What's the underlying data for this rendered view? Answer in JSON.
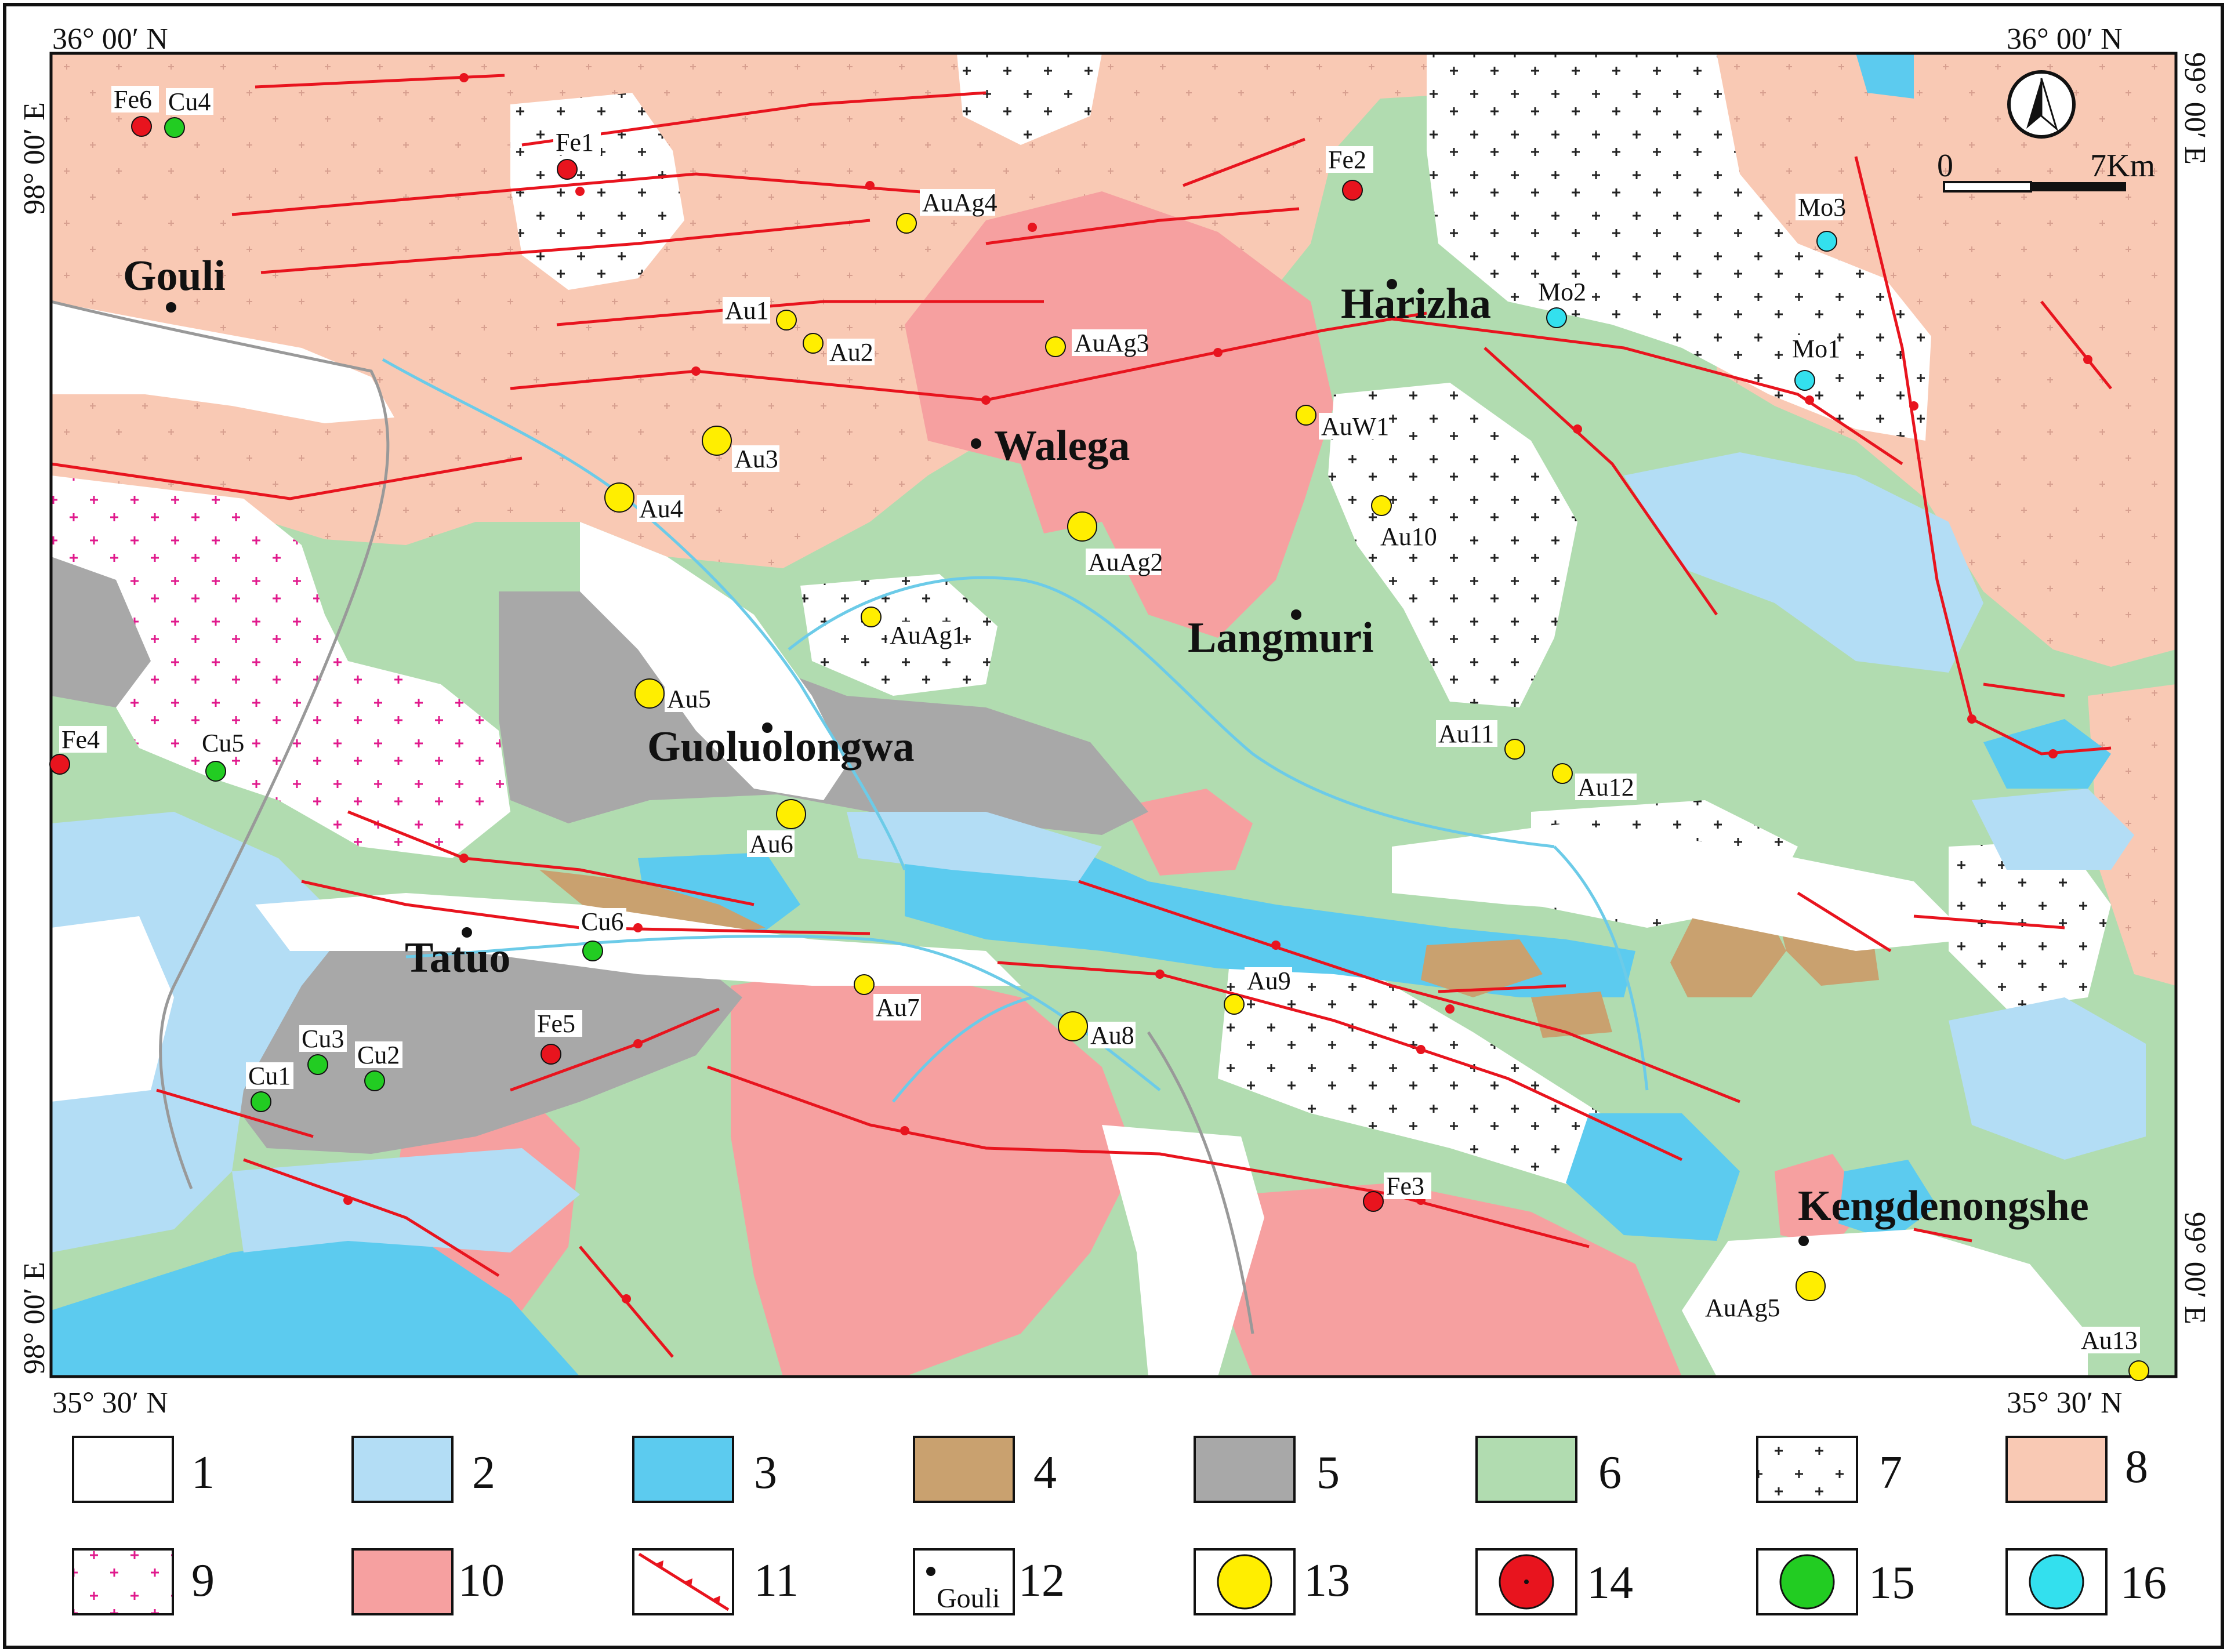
{
  "coords": {
    "top_left_lat": "36° 00′ N",
    "top_right_lat": "36° 00′ N",
    "bottom_left_lat": "35° 30′ N",
    "bottom_right_lat": "35° 30′ N",
    "top_left_lon": "98° 00′ E",
    "bottom_left_lon": "98° 00′ E",
    "top_right_lon": "99° 00′ E",
    "bottom_right_lon": "99° 00′ E"
  },
  "scale": {
    "zero": "0",
    "max": "7Km"
  },
  "places": [
    {
      "id": "gouli",
      "name": "Gouli"
    },
    {
      "id": "harizha",
      "name": "Harizha"
    },
    {
      "id": "walega",
      "name": "Walega"
    },
    {
      "id": "langmuri",
      "name": "Langmuri"
    },
    {
      "id": "guoluolongwa",
      "name": "Guoluolongwa"
    },
    {
      "id": "tatuo",
      "name": "Tatuo"
    },
    {
      "id": "kengdenongshe",
      "name": "Kengdenongshe"
    }
  ],
  "deposits": [
    {
      "name": "Fe6",
      "type": "Fe"
    },
    {
      "name": "Cu4",
      "type": "Cu"
    },
    {
      "name": "Fe1",
      "type": "Fe"
    },
    {
      "name": "Fe2",
      "type": "Fe"
    },
    {
      "name": "AuAg4",
      "type": "Au"
    },
    {
      "name": "Au1",
      "type": "Au"
    },
    {
      "name": "Au2",
      "type": "Au"
    },
    {
      "name": "AuAg3",
      "type": "Au"
    },
    {
      "name": "Mo2",
      "type": "Mo"
    },
    {
      "name": "Mo3",
      "type": "Mo"
    },
    {
      "name": "Mo1",
      "type": "Mo"
    },
    {
      "name": "AuW1",
      "type": "Au"
    },
    {
      "name": "Au3",
      "type": "Au"
    },
    {
      "name": "Au4",
      "type": "Au"
    },
    {
      "name": "AuAg2",
      "type": "Au"
    },
    {
      "name": "Au10",
      "type": "Au"
    },
    {
      "name": "AuAg1",
      "type": "Au"
    },
    {
      "name": "Au5",
      "type": "Au"
    },
    {
      "name": "Fe4",
      "type": "Fe"
    },
    {
      "name": "Cu5",
      "type": "Cu"
    },
    {
      "name": "Au11",
      "type": "Au"
    },
    {
      "name": "Au12",
      "type": "Au"
    },
    {
      "name": "Au6",
      "type": "Au"
    },
    {
      "name": "Cu6",
      "type": "Cu"
    },
    {
      "name": "Au9",
      "type": "Au"
    },
    {
      "name": "Au7",
      "type": "Au"
    },
    {
      "name": "Au8",
      "type": "Au"
    },
    {
      "name": "Fe5",
      "type": "Fe"
    },
    {
      "name": "Cu3",
      "type": "Cu"
    },
    {
      "name": "Cu2",
      "type": "Cu"
    },
    {
      "name": "Cu1",
      "type": "Cu"
    },
    {
      "name": "Fe3",
      "type": "Fe"
    },
    {
      "name": "AuAg5",
      "type": "Au"
    },
    {
      "name": "Au13",
      "type": "Au"
    }
  ],
  "legend": [
    {
      "num": "1",
      "symbol": "white",
      "color": "#ffffff"
    },
    {
      "num": "2",
      "symbol": "light-blue",
      "color": "#b3ddf5"
    },
    {
      "num": "3",
      "symbol": "blue",
      "color": "#5ccbef"
    },
    {
      "num": "4",
      "symbol": "brown",
      "color": "#c9a16f"
    },
    {
      "num": "5",
      "symbol": "gray",
      "color": "#a8a8a8"
    },
    {
      "num": "6",
      "symbol": "green",
      "color": "#b1dcb0"
    },
    {
      "num": "7",
      "symbol": "black-cross-pattern",
      "color": "#ffffff"
    },
    {
      "num": "8",
      "symbol": "light-salmon",
      "color": "#f9c9b4"
    },
    {
      "num": "9",
      "symbol": "magenta-cross-pattern",
      "color": "#ffffff"
    },
    {
      "num": "10",
      "symbol": "salmon",
      "color": "#f6a0a0"
    },
    {
      "num": "11",
      "symbol": "thrust-fault",
      "color": "#e8141e"
    },
    {
      "num": "12",
      "symbol": "town-dot",
      "label": "Gouli"
    },
    {
      "num": "13",
      "symbol": "yellow-circle",
      "color": "#ffee00"
    },
    {
      "num": "14",
      "symbol": "red-circle",
      "color": "#e8141e"
    },
    {
      "num": "15",
      "symbol": "green-circle",
      "color": "#22cc22"
    },
    {
      "num": "16",
      "symbol": "cyan-circle",
      "color": "#33e0ee"
    }
  ]
}
